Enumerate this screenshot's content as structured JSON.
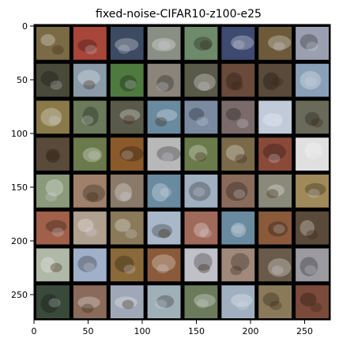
{
  "figure": {
    "title": "fixed-noise-CIFAR10-z100-e25"
  },
  "axes": {
    "x_ticks": [
      "0",
      "50",
      "100",
      "150",
      "200",
      "250"
    ],
    "y_ticks": [
      "0",
      "50",
      "100",
      "150",
      "200",
      "250"
    ]
  },
  "grid_image": {
    "rows": 8,
    "cols": 8,
    "separator_color": "#000000",
    "tile_colors": [
      [
        "#7a6a45",
        "#a8463a",
        "#3c4a62",
        "#8a8f86",
        "#6d8a6a",
        "#3e4a6f",
        "#6c5a3a",
        "#9aa0b0"
      ],
      [
        "#4a4a3a",
        "#8a9aa8",
        "#4f7a3f",
        "#8a847a",
        "#5a5a4a",
        "#6a4a3a",
        "#5a4a3a",
        "#8aa0b8"
      ],
      [
        "#8a7a4a",
        "#6a7a5a",
        "#5a5a4a",
        "#6a8aa0",
        "#7a8aa0",
        "#7a6a6a",
        "#c0cad8",
        "#6a6a5a"
      ],
      [
        "#5a4a3a",
        "#6a7a4a",
        "#8a5a2a",
        "#b8b8b8",
        "#6a7a4a",
        "#7a6a4a",
        "#8a4a3a",
        "#e0e0e0"
      ],
      [
        "#8a9a7a",
        "#a0806a",
        "#8a7a6a",
        "#6a8aa0",
        "#a0b0c0",
        "#8a6a5a",
        "#8a8a7a",
        "#a08a5a"
      ],
      [
        "#a0604a",
        "#b0a090",
        "#8a7a5a",
        "#a8b8c8",
        "#a06a5a",
        "#6a8aa0",
        "#8a5a3a",
        "#5a4a3a"
      ],
      [
        "#b0b8a8",
        "#a0b0c8",
        "#8a6a3a",
        "#8a5a3a",
        "#c0c0c8",
        "#a0887a",
        "#6a5a4a",
        "#9a9aa0"
      ],
      [
        "#3a4a3a",
        "#8a6a5a",
        "#a0a8b8",
        "#a0b0b8",
        "#6a7a5a",
        "#a0b0c0",
        "#8a7a5a",
        "#7a4a3a"
      ]
    ]
  }
}
